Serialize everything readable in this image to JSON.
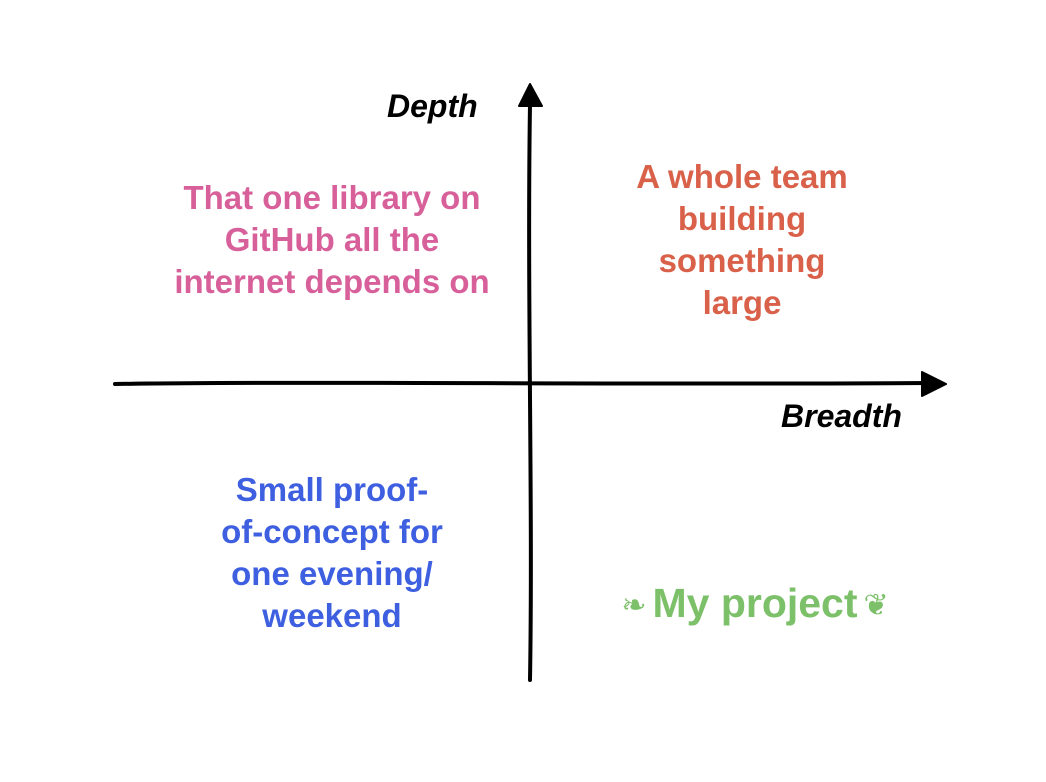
{
  "axes": {
    "y_label": "Depth",
    "x_label": "Breadth"
  },
  "quadrants": {
    "top_left": {
      "text": "That one library on\nGitHub all the\ninternet depends on",
      "color": "#d8609a"
    },
    "top_right": {
      "text": "A whole team\nbuilding\nsomething\nlarge",
      "color": "#d9614a"
    },
    "bottom_left": {
      "text": "Small proof-\nof-concept for\none evening/\nweekend",
      "color": "#3d5fe0"
    },
    "bottom_right": {
      "text": "My project",
      "color": "#7cc06a"
    }
  },
  "colors": {
    "axis": "#000000",
    "background": "#ffffff"
  }
}
